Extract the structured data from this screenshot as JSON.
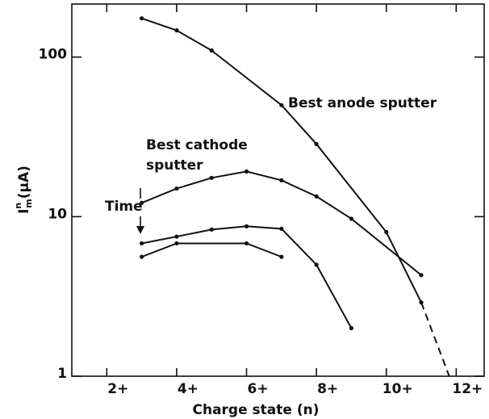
{
  "chart_data": {
    "type": "line",
    "xlabel": "Charge state (n)",
    "ylabel": {
      "main": "I",
      "sup": "n",
      "sub": "m",
      "unit": "(μA)"
    },
    "annotations": [
      "Best anode sputter",
      "Best cathode",
      "sputter",
      "Time"
    ],
    "log_y": true,
    "xlim": [
      1,
      12.8
    ],
    "ylim": [
      1,
      215
    ],
    "xticks": [
      {
        "value": 2,
        "label": "2+"
      },
      {
        "value": 4,
        "label": "4+"
      },
      {
        "value": 6,
        "label": "6+"
      },
      {
        "value": 8,
        "label": "8+"
      },
      {
        "value": 10,
        "label": "10+"
      },
      {
        "value": 12,
        "label": "12+"
      }
    ],
    "yticks": [
      1,
      10,
      100
    ],
    "series": [
      {
        "color": "#111111",
        "style": "solid",
        "x": [
          3,
          4,
          5,
          7,
          8,
          10,
          11
        ],
        "values": [
          175,
          147,
          110,
          50,
          28.5,
          8,
          2.9
        ]
      },
      {
        "color": "#111111",
        "style": "dashed",
        "x": [
          11,
          11.8
        ],
        "values": [
          2.9,
          1
        ]
      },
      {
        "color": "#111111",
        "style": "solid",
        "x": [
          3,
          4,
          5,
          6,
          7,
          8,
          9,
          11
        ],
        "values": [
          12.2,
          15,
          17.5,
          19.2,
          16.9,
          13.4,
          9.7,
          4.3
        ]
      },
      {
        "color": "#111111",
        "style": "solid",
        "x": [
          3,
          4,
          5,
          6,
          7,
          8,
          9
        ],
        "values": [
          6.8,
          7.5,
          8.3,
          8.7,
          8.4,
          5,
          2
        ]
      },
      {
        "color": "#111111",
        "style": "solid",
        "x": [
          3,
          4,
          6,
          7
        ],
        "values": [
          5.6,
          6.8,
          6.8,
          5.6
        ]
      }
    ]
  }
}
